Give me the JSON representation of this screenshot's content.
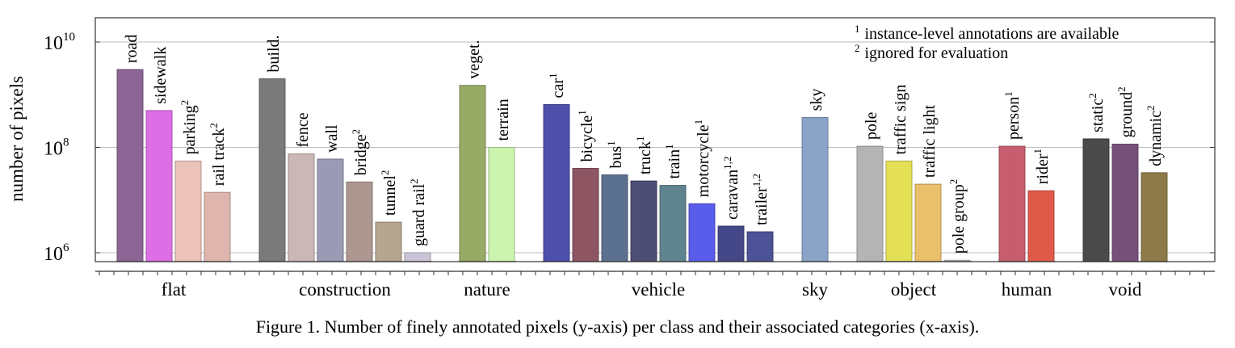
{
  "chart_data": {
    "type": "bar",
    "yscale": "log",
    "ylabel": "number of pixels",
    "ylim": [
      700000,
      30000000000
    ],
    "yticks": [
      {
        "value": 1000000,
        "base": "10",
        "exp": "6"
      },
      {
        "value": 100000000,
        "base": "10",
        "exp": "8"
      },
      {
        "value": 10000000000,
        "base": "10",
        "exp": "10"
      }
    ],
    "grid": true,
    "legend_position": "top-right",
    "legend_notes": [
      {
        "mark": "1",
        "text": "instance-level annotations are available"
      },
      {
        "mark": "2",
        "text": "ignored for evaluation"
      }
    ],
    "groups": [
      {
        "category": "flat",
        "bars": [
          {
            "label": "road",
            "sup": "",
            "value": 3000000000,
            "color": "#8b6694"
          },
          {
            "label": "sidewalk",
            "sup": "",
            "value": 500000000,
            "color": "#dd6ee6"
          },
          {
            "label": "parking",
            "sup": "2",
            "value": 55000000,
            "color": "#ecc3b8"
          },
          {
            "label": "rail track",
            "sup": "2",
            "value": 14000000,
            "color": "#dfb6ae"
          }
        ]
      },
      {
        "category": "construction",
        "bars": [
          {
            "label": "build.",
            "sup": "",
            "value": 2000000000,
            "color": "#7a7a7a"
          },
          {
            "label": "fence",
            "sup": "",
            "value": 75000000,
            "color": "#cbb7b6"
          },
          {
            "label": "wall",
            "sup": "",
            "value": 60000000,
            "color": "#9a9ab4"
          },
          {
            "label": "bridge",
            "sup": "2",
            "value": 22000000,
            "color": "#ae9691"
          },
          {
            "label": "tunnel",
            "sup": "2",
            "value": 3800000,
            "color": "#b6a58f"
          },
          {
            "label": "guard rail",
            "sup": "2",
            "value": 1000000,
            "color": "#cbc4d6"
          }
        ]
      },
      {
        "category": "nature",
        "bars": [
          {
            "label": "veget.",
            "sup": "",
            "value": 1500000000,
            "color": "#97aa66"
          },
          {
            "label": "terrain",
            "sup": "",
            "value": 100000000,
            "color": "#cdf4ae"
          }
        ]
      },
      {
        "category": "vehicle",
        "bars": [
          {
            "label": "car",
            "sup": "1",
            "value": 650000000,
            "color": "#4d4fab"
          },
          {
            "label": "bicycle",
            "sup": "1",
            "value": 40000000,
            "color": "#8e5563"
          },
          {
            "label": "bus",
            "sup": "1",
            "value": 30000000,
            "color": "#5c7090"
          },
          {
            "label": "truck",
            "sup": "1",
            "value": 23000000,
            "color": "#4d4d76"
          },
          {
            "label": "train",
            "sup": "1",
            "value": 19000000,
            "color": "#5f848e"
          },
          {
            "label": "motorcycle",
            "sup": "1",
            "value": 8500000,
            "color": "#5a5cea"
          },
          {
            "label": "caravan",
            "sup": "1,2",
            "value": 3200000,
            "color": "#454888"
          },
          {
            "label": "trailer",
            "sup": "1,2",
            "value": 2500000,
            "color": "#4d5196"
          }
        ]
      },
      {
        "category": "sky",
        "bars": [
          {
            "label": "sky",
            "sup": "",
            "value": 370000000,
            "color": "#8aa4c8"
          }
        ]
      },
      {
        "category": "object",
        "bars": [
          {
            "label": "pole",
            "sup": "",
            "value": 105000000,
            "color": "#b4b4b4"
          },
          {
            "label": "traffic sign",
            "sup": "",
            "value": 55000000,
            "color": "#e4e055"
          },
          {
            "label": "traffic light",
            "sup": "",
            "value": 20000000,
            "color": "#ebc06b"
          },
          {
            "label": "pole group",
            "sup": "2",
            "value": 720000,
            "color": "#c8c8c8"
          }
        ]
      },
      {
        "category": "human",
        "bars": [
          {
            "label": "person",
            "sup": "1",
            "value": 105000000,
            "color": "#c75d6e"
          },
          {
            "label": "rider",
            "sup": "1",
            "value": 15000000,
            "color": "#e05a4a"
          }
        ]
      },
      {
        "category": "void",
        "bars": [
          {
            "label": "static",
            "sup": "2",
            "value": 145000000,
            "color": "#4a4a4a"
          },
          {
            "label": "ground",
            "sup": "2",
            "value": 115000000,
            "color": "#77507a"
          },
          {
            "label": "dynamic",
            "sup": "2",
            "value": 33000000,
            "color": "#8e7a48"
          }
        ]
      }
    ]
  },
  "caption": "Figure 1. Number of finely annotated pixels (y-axis) per class and their associated categories (x-axis)."
}
